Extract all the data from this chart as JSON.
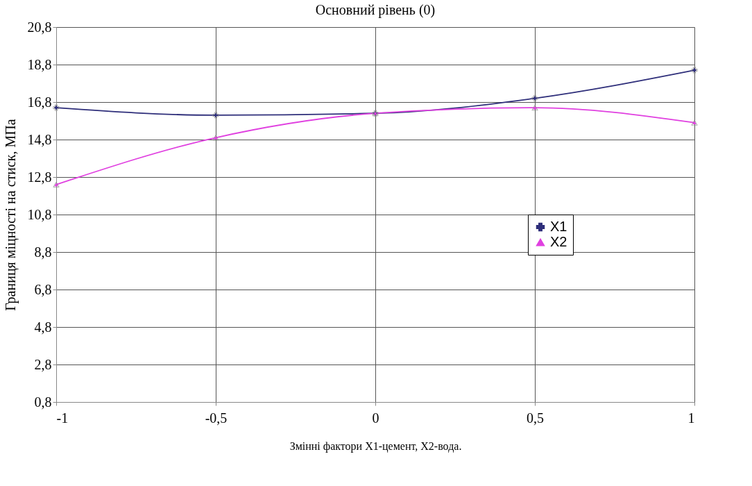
{
  "chart_data": {
    "type": "line",
    "title": "Основний рівень (0)",
    "xlabel": "Змінні фактори  X1-цемент, X2-вода.",
    "ylabel": "Границя міцності на стиск, МПа",
    "x": [
      -1,
      -0.5,
      0,
      0.5,
      1
    ],
    "series": [
      {
        "name": "X1",
        "color": "#2e2e7a",
        "marker": "cross",
        "values": [
          16.5,
          16.1,
          16.2,
          17.0,
          18.5
        ]
      },
      {
        "name": "X2",
        "color": "#e040e0",
        "marker": "triangle",
        "values": [
          12.4,
          14.9,
          16.2,
          16.5,
          15.7
        ]
      }
    ],
    "xlim": [
      -1,
      1
    ],
    "ylim": [
      0.8,
      20.8
    ],
    "xticks": [
      -1,
      {
        "value": -0.5,
        "label": "-0,5"
      },
      0,
      {
        "value": 0.5,
        "label": "0,5"
      },
      1
    ],
    "yticks": [
      {
        "value": 0.8,
        "label": "0,8"
      },
      {
        "value": 2.8,
        "label": "2,8"
      },
      {
        "value": 4.8,
        "label": "4,8"
      },
      {
        "value": 6.8,
        "label": "6,8"
      },
      {
        "value": 8.8,
        "label": "8,8"
      },
      {
        "value": 10.8,
        "label": "10,8"
      },
      {
        "value": 12.8,
        "label": "12,8"
      },
      {
        "value": 14.8,
        "label": "14,8"
      },
      {
        "value": 16.8,
        "label": "16,8"
      },
      {
        "value": 18.8,
        "label": "18,8"
      },
      {
        "value": 20.8,
        "label": "20,8"
      }
    ],
    "grid": true,
    "legend": "right",
    "line_style": "solid"
  }
}
